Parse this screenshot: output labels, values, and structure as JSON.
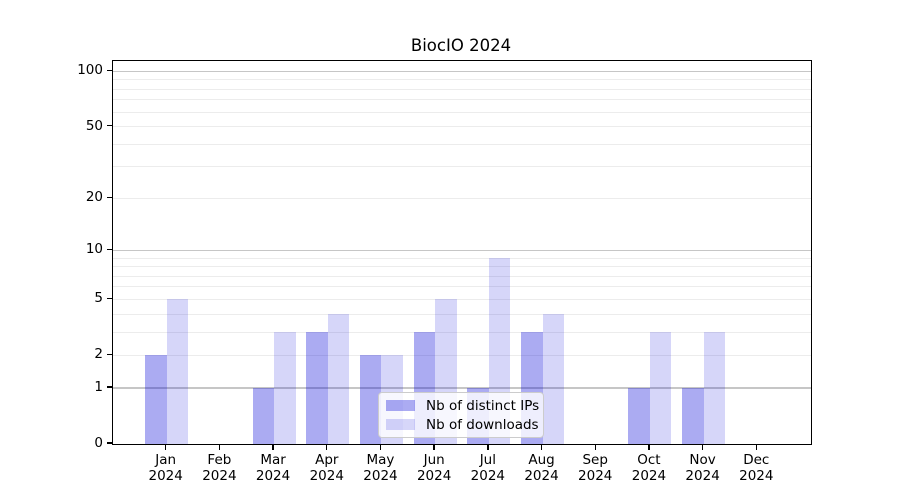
{
  "title": "BiocIO 2024",
  "chart_data": {
    "type": "bar",
    "title": "BiocIO 2024",
    "categories": [
      "Jan 2024",
      "Feb 2024",
      "Mar 2024",
      "Apr 2024",
      "May 2024",
      "Jun 2024",
      "Jul 2024",
      "Aug 2024",
      "Sep 2024",
      "Oct 2024",
      "Nov 2024",
      "Dec 2024"
    ],
    "series": [
      {
        "name": "Nb of distinct IPs",
        "color": "rgba(0,0,216,0.33)",
        "values": [
          2,
          0,
          1,
          3,
          2,
          3,
          1,
          3,
          0,
          1,
          1,
          0
        ]
      },
      {
        "name": "Nb of downloads",
        "color": "rgba(0,0,216,0.16)",
        "values": [
          5,
          0,
          3,
          4,
          2,
          5,
          9,
          4,
          0,
          3,
          3,
          0
        ]
      }
    ],
    "yscale": "log10(1+y)",
    "ylim": [
      0,
      115
    ],
    "yticks": [
      0,
      1,
      2,
      5,
      10,
      20,
      50,
      100
    ],
    "major_grid_values": [
      1,
      10,
      100
    ],
    "minor_grid_values": [
      2,
      3,
      4,
      5,
      6,
      7,
      8,
      9,
      20,
      30,
      40,
      50,
      60,
      70,
      80,
      90
    ],
    "grid": true,
    "legend_position": "lower center",
    "xlabel": "",
    "ylabel": ""
  },
  "colors": {
    "major_grid": "#c6c6c6",
    "minor_grid": "#ececec",
    "axis": "#000000",
    "legend_border": "#cccccc",
    "legend_bg": "rgba(255,255,255,0.8)"
  }
}
